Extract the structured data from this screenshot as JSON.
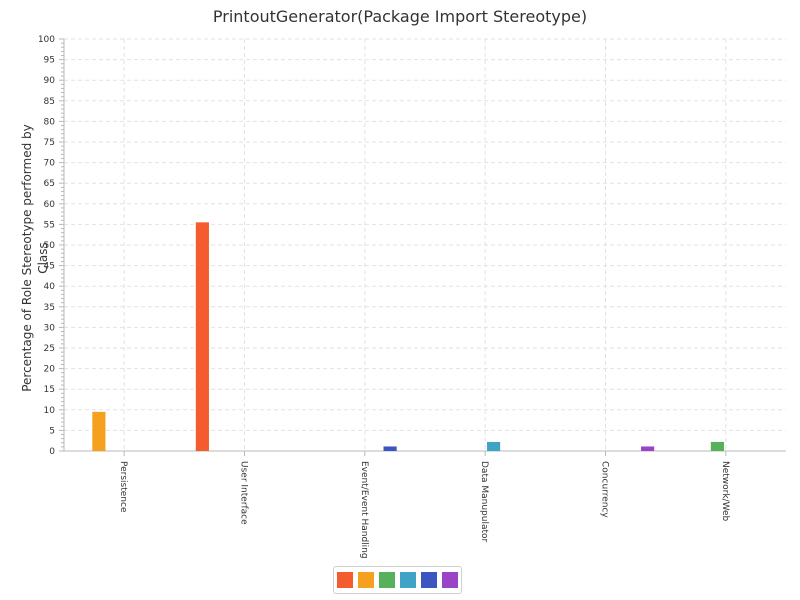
{
  "chart_data": {
    "type": "bar",
    "title": "PrintoutGenerator(Package Import Stereotype)",
    "xlabel": "",
    "ylabel": "Percentage of Role Stereotype performed by Class",
    "ylim": [
      0,
      100
    ],
    "y_major_step": 5,
    "grid": true,
    "legend_position": "bottom",
    "categories": [
      "Persistence",
      "User Interface",
      "Event/Event Handling",
      "Data Manupulator",
      "Concurrency",
      "Network/Web"
    ],
    "series": [
      {
        "color": "#f45b2f",
        "values": [
          0,
          55.5,
          0,
          0,
          0,
          0
        ]
      },
      {
        "color": "#f6a020",
        "values": [
          9.5,
          0,
          0,
          0,
          0,
          0
        ]
      },
      {
        "color": "#56b15a",
        "values": [
          0,
          0,
          0,
          0,
          0,
          2.2
        ]
      },
      {
        "color": "#3fa3c6",
        "values": [
          0,
          0,
          0,
          2.2,
          0,
          0
        ]
      },
      {
        "color": "#3c55c0",
        "values": [
          0,
          0,
          1.1,
          0,
          0,
          0
        ]
      },
      {
        "color": "#9b43c7",
        "values": [
          0,
          0,
          0,
          0,
          1.1,
          0
        ]
      }
    ]
  }
}
